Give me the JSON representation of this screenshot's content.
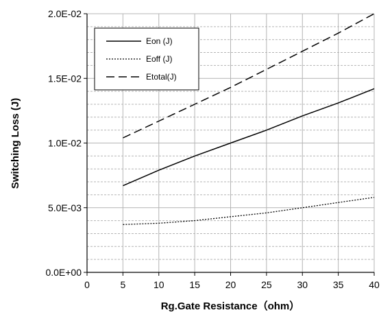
{
  "chart_data": {
    "type": "line",
    "xlabel": "Rg.Gate Resistance（ohm）",
    "ylabel": "Switching Loss (J)",
    "xlim": [
      0,
      40
    ],
    "ylim": [
      0,
      0.02
    ],
    "x_ticks": [
      0,
      5,
      10,
      15,
      20,
      25,
      30,
      35,
      40
    ],
    "x_tick_labels": [
      "0",
      "5",
      "10",
      "15",
      "20",
      "25",
      "30",
      "35",
      "40"
    ],
    "y_ticks": [
      0,
      0.005,
      0.01,
      0.015,
      0.02
    ],
    "y_tick_labels": [
      "0.0E+00",
      "5.0E-03",
      "1.0E-02",
      "1.5E-02",
      "2.0E-02"
    ],
    "grid": true,
    "legend_position": "top-left",
    "x": [
      5,
      10,
      15,
      20,
      25,
      30,
      35,
      40
    ],
    "series": [
      {
        "name": "Eon (J)",
        "dash": "solid",
        "values": [
          0.0067,
          0.0079,
          0.009,
          0.01,
          0.011,
          0.0121,
          0.0131,
          0.0142
        ]
      },
      {
        "name": "Eoff (J)",
        "dash": "dotted",
        "values": [
          0.0037,
          0.0038,
          0.004,
          0.0043,
          0.0046,
          0.005,
          0.0054,
          0.0058
        ]
      },
      {
        "name": "Etotal(J)",
        "dash": "dashed",
        "values": [
          0.0104,
          0.0117,
          0.013,
          0.0143,
          0.0157,
          0.0171,
          0.0185,
          0.02
        ]
      }
    ],
    "colors": {
      "line": "#000000",
      "grid": "#b4b4b4",
      "axis": "#000000"
    }
  }
}
